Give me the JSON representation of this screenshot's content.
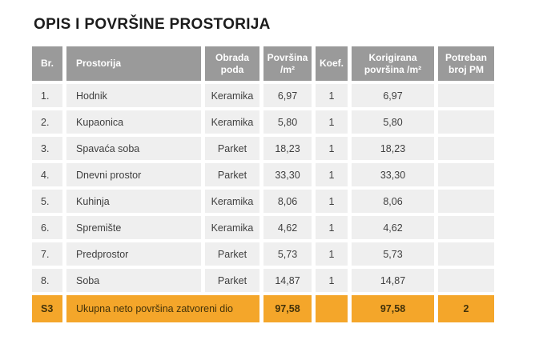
{
  "title": "OPIS I POVRŠINE PROSTORIJA",
  "colors": {
    "header_bg": "#9a9a9a",
    "header_text": "#ffffff",
    "row_bg": "#efefef",
    "row_text": "#3f3f3f",
    "total_bg": "#f4a62a",
    "total_text": "#42320a",
    "page_bg": "#ffffff"
  },
  "table": {
    "headers": {
      "br": "Br.",
      "prostorija": "Prostorija",
      "obrada": "Obrada poda",
      "povrsina": "Površina /m²",
      "koef": "Koef.",
      "korigirana": "Korigirana površina /m²",
      "pm": "Potreban broj PM"
    },
    "rows": [
      {
        "br": "1.",
        "prostorija": "Hodnik",
        "obrada": "Keramika",
        "povrsina": "6,97",
        "koef": "1",
        "korigirana": "6,97",
        "pm": ""
      },
      {
        "br": "2.",
        "prostorija": "Kupaonica",
        "obrada": "Keramika",
        "povrsina": "5,80",
        "koef": "1",
        "korigirana": "5,80",
        "pm": ""
      },
      {
        "br": "3.",
        "prostorija": "Spavaća soba",
        "obrada": "Parket",
        "povrsina": "18,23",
        "koef": "1",
        "korigirana": "18,23",
        "pm": ""
      },
      {
        "br": "4.",
        "prostorija": "Dnevni prostor",
        "obrada": "Parket",
        "povrsina": "33,30",
        "koef": "1",
        "korigirana": "33,30",
        "pm": ""
      },
      {
        "br": "5.",
        "prostorija": "Kuhinja",
        "obrada": "Keramika",
        "povrsina": "8,06",
        "koef": "1",
        "korigirana": "8,06",
        "pm": ""
      },
      {
        "br": "6.",
        "prostorija": "Spremište",
        "obrada": "Keramika",
        "povrsina": "4,62",
        "koef": "1",
        "korigirana": "4,62",
        "pm": ""
      },
      {
        "br": "7.",
        "prostorija": "Predprostor",
        "obrada": "Parket",
        "povrsina": "5,73",
        "koef": "1",
        "korigirana": "5,73",
        "pm": ""
      },
      {
        "br": "8.",
        "prostorija": "Soba",
        "obrada": "Parket",
        "povrsina": "14,87",
        "koef": "1",
        "korigirana": "14,87",
        "pm": ""
      }
    ],
    "total": {
      "br": "S3",
      "label": "Ukupna neto površina zatvoreni dio",
      "povrsina": "97,58",
      "koef": "",
      "korigirana": "97,58",
      "pm": "2"
    }
  }
}
